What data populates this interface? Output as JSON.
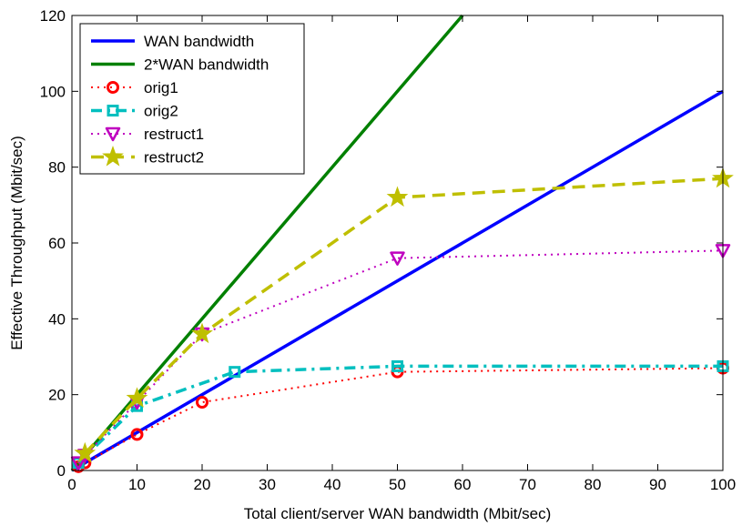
{
  "chart_data": {
    "type": "line",
    "xlabel": "Total client/server WAN bandwidth (Mbit/sec)",
    "ylabel": "Effective Throughput (Mbit/sec)",
    "xlim": [
      0,
      100
    ],
    "ylim": [
      0,
      120
    ],
    "xticks": [
      "0",
      "10",
      "20",
      "30",
      "40",
      "50",
      "60",
      "70",
      "80",
      "90",
      "100"
    ],
    "yticks": [
      "0",
      "20",
      "40",
      "60",
      "80",
      "100",
      "120"
    ],
    "grid": false,
    "legend_position": "top-left",
    "series": [
      {
        "name": "WAN bandwidth",
        "color": "#0000ff",
        "style": "solid",
        "marker": "none",
        "x": [
          0,
          100
        ],
        "y": [
          0,
          100
        ]
      },
      {
        "name": "2*WAN bandwidth",
        "color": "#008000",
        "style": "solid",
        "marker": "none",
        "x": [
          0,
          60
        ],
        "y": [
          0,
          120
        ]
      },
      {
        "name": "orig1",
        "color": "#ff0000",
        "style": "dotted",
        "marker": "circle",
        "x": [
          1,
          2,
          10,
          20,
          50,
          100
        ],
        "y": [
          1,
          2,
          9.5,
          18,
          26,
          27
        ]
      },
      {
        "name": "orig2",
        "color": "#00bfbf",
        "style": "dashdot",
        "marker": "square",
        "x": [
          1,
          10,
          25,
          50,
          100
        ],
        "y": [
          2,
          17,
          26,
          27.5,
          27.5
        ]
      },
      {
        "name": "restruct1",
        "color": "#bf00bf",
        "style": "dotted",
        "marker": "triangle-down",
        "x": [
          1,
          2,
          10,
          20,
          50,
          100
        ],
        "y": [
          2,
          4,
          18,
          36,
          56,
          58
        ]
      },
      {
        "name": "restruct2",
        "color": "#bfbf00",
        "style": "dashed",
        "marker": "star",
        "x": [
          2,
          10,
          20,
          50,
          100
        ],
        "y": [
          4.5,
          19,
          36,
          72,
          77
        ]
      }
    ]
  }
}
